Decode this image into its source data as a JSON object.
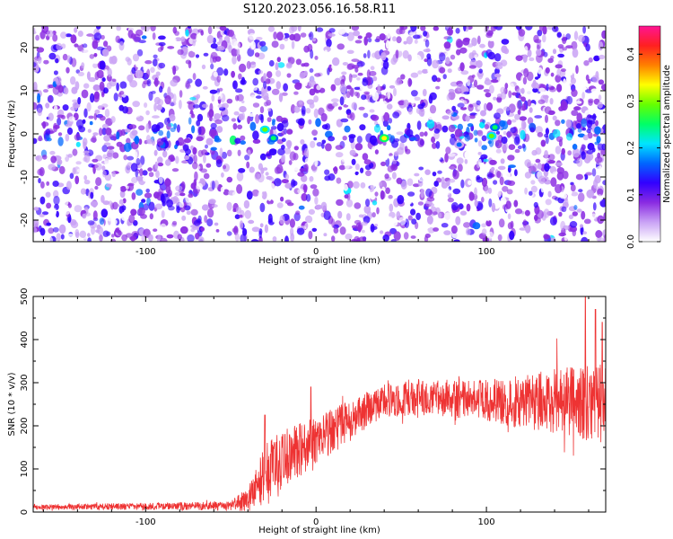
{
  "title": "S120.2023.056.16.58.R11",
  "chart_data": [
    {
      "type": "heatmap",
      "title": "S120.2023.056.16.58.R11",
      "xlabel": "Height of straight line (km)",
      "ylabel": "Frequency (Hz)",
      "xlim": [
        -166,
        170
      ],
      "ylim": [
        -25,
        25
      ],
      "x_ticks": [
        -100,
        0,
        100
      ],
      "y_ticks": [
        -20,
        -10,
        0,
        10,
        20
      ],
      "colorbar": {
        "label": "Normalized spectral amplitude",
        "range": [
          0.0,
          0.46
        ],
        "ticks": [
          "0.0",
          "0.1",
          "0.2",
          "0.3",
          "0.4"
        ],
        "colormap": "rainbow",
        "colors": [
          "#ffffff",
          "#c9a2f5",
          "#8a2be2",
          "#3200ff",
          "#0066ff",
          "#00e5ff",
          "#00ff66",
          "#66ff00",
          "#ffff00",
          "#ff8000",
          "#ff2020",
          "#ff1493"
        ]
      },
      "signal_band": {
        "frequency_center": 0,
        "frequency_halfwidth": 3.5
      },
      "hotspots": [
        {
          "x": -30,
          "y": 1.0,
          "value": 0.3
        },
        {
          "x": -25,
          "y": -1.0,
          "value": 0.25
        },
        {
          "x": 40,
          "y": -1.0,
          "value": 0.35
        },
        {
          "x": 103,
          "y": -0.5,
          "value": 0.3
        },
        {
          "x": 105,
          "y": 1.5,
          "value": 0.25
        },
        {
          "x": 84,
          "y": -2.5,
          "value": 0.15
        }
      ]
    },
    {
      "type": "line",
      "xlabel": "Height of straight line (km)",
      "ylabel": "SNR (10 * v/v)",
      "xlim": [
        -166,
        170
      ],
      "ylim": [
        0,
        500
      ],
      "x_ticks": [
        -100,
        0,
        100
      ],
      "y_ticks": [
        0,
        100,
        200,
        300,
        400,
        500
      ],
      "color": "#ee3333",
      "trend": [
        {
          "x": -166,
          "mean": 12,
          "spread": 6
        },
        {
          "x": -50,
          "mean": 14,
          "spread": 10
        },
        {
          "x": -38,
          "mean": 35,
          "spread": 40
        },
        {
          "x": -30,
          "mean": 90,
          "spread": 70
        },
        {
          "x": -20,
          "mean": 120,
          "spread": 70
        },
        {
          "x": 0,
          "mean": 160,
          "spread": 60
        },
        {
          "x": 20,
          "mean": 215,
          "spread": 45
        },
        {
          "x": 40,
          "mean": 258,
          "spread": 40
        },
        {
          "x": 60,
          "mean": 265,
          "spread": 40
        },
        {
          "x": 90,
          "mean": 260,
          "spread": 45
        },
        {
          "x": 110,
          "mean": 255,
          "spread": 55
        },
        {
          "x": 140,
          "mean": 258,
          "spread": 75
        },
        {
          "x": 170,
          "mean": 250,
          "spread": 95
        }
      ],
      "peaks": [
        {
          "x": -30,
          "y": 225
        },
        {
          "x": -3,
          "y": 290
        },
        {
          "x": 158,
          "y": 500
        },
        {
          "x": 164,
          "y": 470
        },
        {
          "x": 168,
          "y": 440
        }
      ]
    }
  ]
}
